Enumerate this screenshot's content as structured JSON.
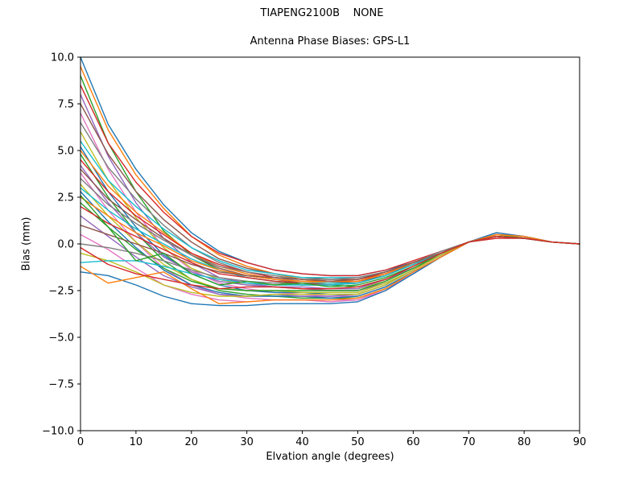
{
  "chart_data": {
    "type": "line",
    "suptitle": "TIAPENG2100B    NONE",
    "title": "Antenna Phase Biases: GPS-L1",
    "xlabel": "Elvation angle (degrees)",
    "ylabel": "Bias (mm)",
    "xlim": [
      0,
      90
    ],
    "ylim": [
      -10,
      10
    ],
    "grid": false,
    "legend": "none",
    "axis_color": "#000000",
    "background": "#ffffff",
    "xticks": [
      0,
      10,
      20,
      30,
      40,
      50,
      60,
      70,
      80,
      90
    ],
    "xtick_labels": [
      "0",
      "10",
      "20",
      "30",
      "40",
      "50",
      "60",
      "70",
      "80",
      "90"
    ],
    "yticks": [
      -10,
      -7.5,
      -5,
      -2.5,
      0,
      2.5,
      5,
      7.5,
      10
    ],
    "ytick_labels": [
      "−10.0",
      "−7.5",
      "−5.0",
      "−2.5",
      "0.0",
      "2.5",
      "5.0",
      "7.5",
      "10.0"
    ],
    "palette": [
      "#1f77b4",
      "#ff7f0e",
      "#2ca02c",
      "#d62728",
      "#9467bd",
      "#8c564b",
      "#e377c2",
      "#7f7f7f",
      "#bcbd22",
      "#17becf"
    ],
    "x": [
      0,
      5,
      10,
      15,
      20,
      25,
      30,
      35,
      40,
      45,
      50,
      55,
      60,
      65,
      70,
      75,
      80,
      85,
      90
    ],
    "series": [
      {
        "values": [
          10.0,
          6.4,
          4.0,
          2.1,
          0.6,
          -0.4,
          -1.0,
          -1.4,
          -1.6,
          -1.7,
          -1.7,
          -1.4,
          -1.0,
          -0.5,
          0.1,
          0.4,
          0.3,
          0.1,
          0.0
        ]
      },
      {
        "values": [
          9.5,
          6.1,
          3.7,
          1.9,
          0.4,
          -0.6,
          -1.2,
          -1.6,
          -1.9,
          -2.0,
          -2.0,
          -1.6,
          -1.1,
          -0.5,
          0.1,
          0.4,
          0.3,
          0.1,
          0.0
        ]
      },
      {
        "values": [
          9.0,
          5.4,
          2.8,
          0.7,
          -0.6,
          -1.4,
          -1.8,
          -2.0,
          -2.2,
          -2.2,
          -2.3,
          -1.9,
          -1.3,
          -0.5,
          0.1,
          0.4,
          0.3,
          0.1,
          0.0
        ]
      },
      {
        "values": [
          8.5,
          5.4,
          3.3,
          1.7,
          0.4,
          -0.5,
          -1.0,
          -1.4,
          -1.6,
          -1.7,
          -1.7,
          -1.4,
          -0.9,
          -0.4,
          0.1,
          0.3,
          0.3,
          0.1,
          0.0
        ]
      },
      {
        "values": [
          8.0,
          4.7,
          2.2,
          0.3,
          -1.0,
          -1.8,
          -2.1,
          -2.3,
          -2.4,
          -2.5,
          -2.5,
          -2.1,
          -1.4,
          -0.6,
          0.1,
          0.5,
          0.4,
          0.1,
          0.0
        ]
      },
      {
        "values": [
          7.5,
          4.8,
          2.8,
          1.3,
          0.1,
          -0.8,
          -1.3,
          -1.6,
          -1.8,
          -1.9,
          -1.9,
          -1.5,
          -1.0,
          -0.5,
          0.1,
          0.4,
          0.3,
          0.1,
          0.0
        ]
      },
      {
        "values": [
          7.0,
          4.0,
          1.7,
          -0.2,
          -1.4,
          -2.1,
          -2.4,
          -2.6,
          -2.7,
          -2.8,
          -2.8,
          -2.3,
          -1.5,
          -0.7,
          0.1,
          0.5,
          0.4,
          0.1,
          0.0
        ]
      },
      {
        "values": [
          6.5,
          4.1,
          2.4,
          1.0,
          -0.2,
          -1.0,
          -1.5,
          -1.8,
          -2.0,
          -2.0,
          -2.0,
          -1.6,
          -1.1,
          -0.5,
          0.1,
          0.4,
          0.3,
          0.1,
          0.0
        ]
      },
      {
        "values": [
          6.0,
          3.4,
          1.4,
          -0.2,
          -1.3,
          -1.9,
          -2.2,
          -2.3,
          -2.4,
          -2.4,
          -2.4,
          -2.0,
          -1.3,
          -0.6,
          0.1,
          0.5,
          0.3,
          0.1,
          0.0
        ]
      },
      {
        "values": [
          5.5,
          3.4,
          2.0,
          0.8,
          -0.2,
          -0.9,
          -1.4,
          -1.6,
          -1.8,
          -1.8,
          -1.8,
          -1.5,
          -1.0,
          -0.5,
          0.1,
          0.4,
          0.3,
          0.1,
          0.0
        ]
      },
      {
        "values": [
          5.2,
          2.8,
          0.9,
          -0.6,
          -1.6,
          -2.2,
          -2.5,
          -2.6,
          -2.6,
          -2.7,
          -2.7,
          -2.2,
          -1.4,
          -0.6,
          0.1,
          0.5,
          0.4,
          0.1,
          0.0
        ]
      },
      {
        "values": [
          5.0,
          3.1,
          1.7,
          0.6,
          -0.5,
          -1.2,
          -1.6,
          -1.9,
          -2.0,
          -2.1,
          -2.0,
          -1.7,
          -1.1,
          -0.5,
          0.1,
          0.4,
          0.3,
          0.1,
          0.0
        ]
      },
      {
        "values": [
          4.8,
          2.5,
          0.6,
          -0.9,
          -1.9,
          -2.5,
          -2.7,
          -2.8,
          -2.9,
          -2.9,
          -2.9,
          -2.4,
          -1.6,
          -0.7,
          0.1,
          0.5,
          0.4,
          0.1,
          0.0
        ]
      },
      {
        "values": [
          4.5,
          2.8,
          1.5,
          0.5,
          -0.5,
          -1.1,
          -1.5,
          -1.8,
          -1.9,
          -2.0,
          -1.9,
          -1.6,
          -1.0,
          -0.5,
          0.1,
          0.4,
          0.3,
          0.1,
          0.0
        ]
      },
      {
        "values": [
          4.2,
          2.2,
          0.6,
          -0.7,
          -1.5,
          -2.0,
          -2.2,
          -2.3,
          -2.3,
          -2.4,
          -2.4,
          -1.9,
          -1.3,
          -0.6,
          0.1,
          0.4,
          0.3,
          0.1,
          0.0
        ]
      },
      {
        "values": [
          4.0,
          2.4,
          1.3,
          0.3,
          -0.6,
          -1.3,
          -1.7,
          -1.9,
          -2.1,
          -2.1,
          -2.0,
          -1.7,
          -1.1,
          -0.5,
          0.1,
          0.4,
          0.3,
          0.1,
          0.0
        ]
      },
      {
        "values": [
          3.8,
          1.8,
          0.1,
          -1.3,
          -2.2,
          -2.7,
          -2.9,
          -3.0,
          -3.0,
          -3.1,
          -3.0,
          -2.5,
          -1.6,
          -0.7,
          0.1,
          0.6,
          0.4,
          0.1,
          0.0
        ]
      },
      {
        "values": [
          3.5,
          2.1,
          1.1,
          0.2,
          -0.6,
          -1.2,
          -1.5,
          -1.7,
          -1.9,
          -1.9,
          -1.8,
          -1.5,
          -1.0,
          -0.4,
          0.1,
          0.4,
          0.3,
          0.1,
          0.0
        ]
      },
      {
        "values": [
          3.2,
          1.5,
          0.1,
          -1.1,
          -1.9,
          -2.4,
          -2.5,
          -2.5,
          -2.6,
          -2.6,
          -2.6,
          -2.1,
          -1.4,
          -0.6,
          0.1,
          0.5,
          0.4,
          0.1,
          0.0
        ]
      },
      {
        "values": [
          3.0,
          1.8,
          0.8,
          0.0,
          -0.8,
          -1.4,
          -1.8,
          -2.0,
          -2.1,
          -2.1,
          -2.1,
          -1.7,
          -1.1,
          -0.5,
          0.1,
          0.4,
          0.3,
          0.1,
          0.0
        ]
      },
      {
        "values": [
          2.8,
          1.2,
          -0.2,
          -1.4,
          -2.2,
          -2.6,
          -2.8,
          -2.8,
          -2.8,
          -2.9,
          -2.8,
          -2.3,
          -1.5,
          -0.7,
          0.1,
          0.5,
          0.4,
          0.1,
          0.0
        ]
      },
      {
        "values": [
          2.5,
          1.5,
          0.6,
          -0.1,
          -0.9,
          -1.4,
          -1.7,
          -1.9,
          -2.0,
          -2.0,
          -2.0,
          -1.6,
          -1.0,
          -0.5,
          0.1,
          0.4,
          0.3,
          0.1,
          0.0
        ]
      },
      {
        "values": [
          2.2,
          0.9,
          -0.3,
          -1.3,
          -2.0,
          -2.4,
          -2.5,
          -2.5,
          -2.5,
          -2.5,
          -2.5,
          -2.0,
          -1.3,
          -0.6,
          0.1,
          0.5,
          0.3,
          0.1,
          0.0
        ]
      },
      {
        "values": [
          2.0,
          1.1,
          0.4,
          -0.3,
          -1.0,
          -1.6,
          -1.8,
          -2.0,
          -2.1,
          -2.2,
          -2.1,
          -1.7,
          -1.1,
          -0.5,
          0.1,
          0.4,
          0.3,
          0.1,
          0.0
        ]
      },
      {
        "values": [
          1.5,
          0.4,
          -0.7,
          -1.7,
          -2.3,
          -2.7,
          -2.8,
          -2.7,
          -2.8,
          -2.8,
          -2.7,
          -2.2,
          -1.4,
          -0.6,
          0.1,
          0.5,
          0.4,
          0.1,
          0.0
        ]
      },
      {
        "values": [
          1.0,
          0.5,
          0.0,
          -0.5,
          -1.1,
          -1.5,
          -1.7,
          -1.8,
          -1.9,
          -2.0,
          -1.9,
          -1.5,
          -1.0,
          -0.5,
          0.1,
          0.4,
          0.3,
          0.1,
          0.0
        ]
      },
      {
        "values": [
          0.5,
          -0.3,
          -1.3,
          -2.2,
          -2.7,
          -3.0,
          -3.1,
          -3.0,
          -3.0,
          -3.0,
          -3.0,
          -2.4,
          -1.6,
          -0.7,
          0.1,
          0.5,
          0.4,
          0.1,
          0.0
        ]
      },
      {
        "values": [
          0.0,
          -0.2,
          -0.5,
          -0.9,
          -1.4,
          -1.8,
          -2.0,
          -2.1,
          -2.2,
          -2.2,
          -2.1,
          -1.7,
          -1.1,
          -0.5,
          0.1,
          0.4,
          0.3,
          0.1,
          0.0
        ]
      },
      {
        "values": [
          -0.5,
          -0.9,
          -1.5,
          -2.2,
          -2.6,
          -2.8,
          -2.8,
          -2.7,
          -2.7,
          -2.7,
          -2.7,
          -2.2,
          -1.4,
          -0.6,
          0.1,
          0.5,
          0.4,
          0.1,
          0.0
        ]
      },
      {
        "values": [
          -1.0,
          -0.9,
          -0.9,
          -1.2,
          -1.6,
          -1.9,
          -2.1,
          -2.2,
          -2.2,
          -2.2,
          -2.1,
          -1.7,
          -1.1,
          -0.5,
          0.1,
          0.4,
          0.3,
          0.1,
          0.0
        ]
      },
      {
        "values": [
          -1.5,
          -1.7,
          -2.2,
          -2.8,
          -3.2,
          -3.3,
          -3.3,
          -3.2,
          -3.2,
          -3.2,
          -3.1,
          -2.5,
          -1.6,
          -0.7,
          0.1,
          0.6,
          0.4,
          0.1,
          0.0
        ]
      },
      {
        "values": [
          -1.2,
          -2.1,
          -1.8,
          -1.5,
          -2.4,
          -3.2,
          -3.1,
          -3.0,
          -3.0,
          -3.0,
          -2.9,
          -2.4,
          -1.5,
          -0.7,
          0.1,
          0.5,
          0.4,
          0.1,
          0.0
        ]
      },
      {
        "values": [
          2.6,
          0.9,
          -0.9,
          -0.5,
          -1.6,
          -2.2,
          -2.0,
          -2.2,
          -2.1,
          -2.3,
          -2.2,
          -1.8,
          -1.2,
          -0.5,
          0.1,
          0.4,
          0.3,
          0.1,
          0.0
        ]
      },
      {
        "values": [
          -0.2,
          -1.1,
          -1.6,
          -1.9,
          -2.2,
          -2.4,
          -2.3,
          -2.3,
          -2.4,
          -2.4,
          -2.3,
          -1.9,
          -1.2,
          -0.5,
          0.1,
          0.4,
          0.3,
          0.1,
          0.0
        ]
      }
    ]
  }
}
